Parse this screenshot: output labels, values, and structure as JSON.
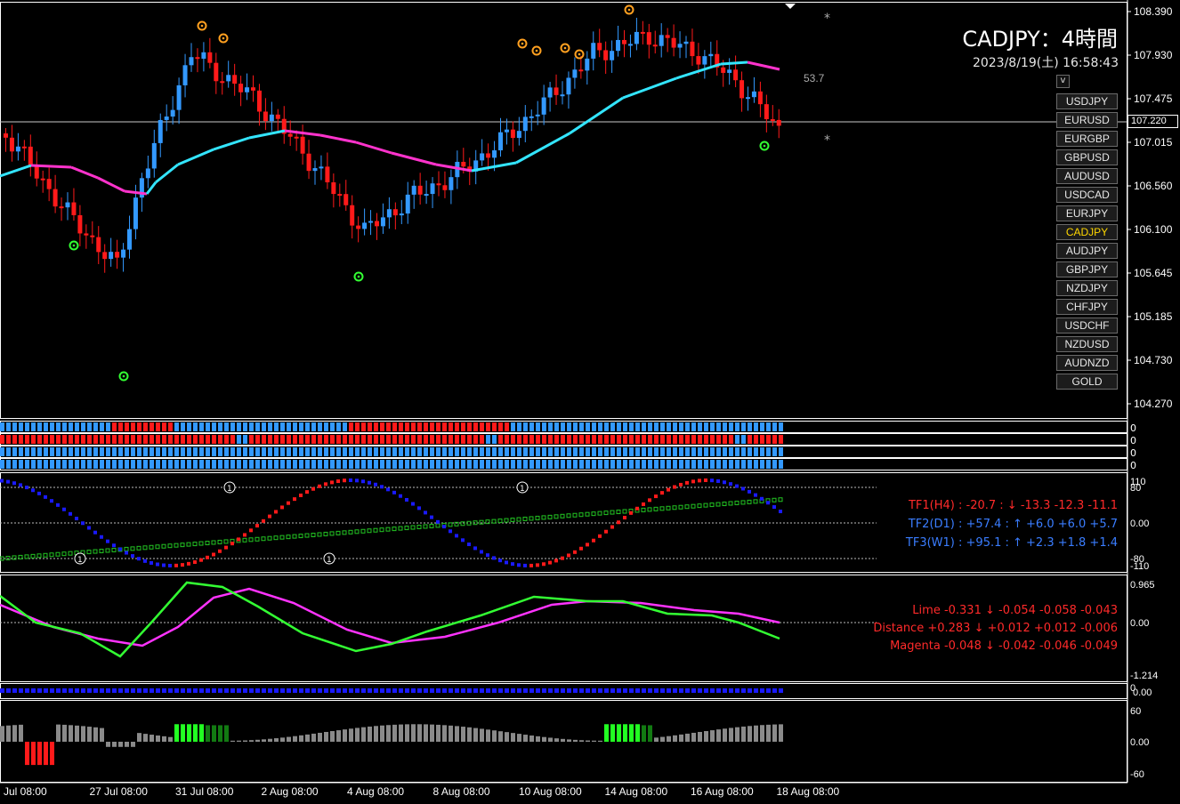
{
  "header": {
    "symbol_title": "CADJPY：4時間",
    "timestamp": "2023/8/19(土) 16:58:43",
    "value_label": "53.7",
    "current_price": "107.220",
    "toggle_label": "v"
  },
  "pairs": [
    "USDJPY",
    "EURUSD",
    "EURGBP",
    "GBPUSD",
    "AUDUSD",
    "USDCAD",
    "EURJPY",
    "CADJPY",
    "AUDJPY",
    "GBPJPY",
    "NZDJPY",
    "CHFJPY",
    "USDCHF",
    "NZDUSD",
    "AUDNZD",
    "GOLD"
  ],
  "active_pair": "CADJPY",
  "price_axis": [
    "108.390",
    "107.930",
    "107.475",
    "107.015",
    "106.560",
    "106.100",
    "105.645",
    "105.185",
    "104.730",
    "104.270"
  ],
  "time_axis": [
    "Jul 08:00",
    "27 Jul 08:00",
    "31 Jul 08:00",
    "2 Aug 08:00",
    "4 Aug 08:00",
    "8 Aug 08:00",
    "10 Aug 08:00",
    "14 Aug 08:00",
    "16 Aug 08:00",
    "18 Aug 08:00"
  ],
  "strip_axis": [
    "0",
    "0",
    "0",
    "0"
  ],
  "tf_panel": {
    "axis": [
      "110",
      "80",
      "0.00",
      "-80",
      "-110"
    ],
    "lines": [
      {
        "text": "TF1(H4) : -20.7 : ↓ -13.3 -12.3 -11.1",
        "color": "#ff2a2a"
      },
      {
        "text": "TF2(D1) : +57.4 : ↑ +6.0 +6.0 +5.7",
        "color": "#3a7dff"
      },
      {
        "text": "TF3(W1) : +95.1 : ↑ +2.3 +1.8 +1.4",
        "color": "#3a7dff"
      }
    ]
  },
  "osc_panel": {
    "axis": [
      "0.965",
      "0.00",
      "-1.214"
    ],
    "lines": [
      {
        "text": "Lime -0.331 ↓ -0.054 -0.058 -0.043",
        "color": "#ff2a2a"
      },
      {
        "text": "Distance +0.283 ↓ +0.012 +0.012 -0.006",
        "color": "#ff2a2a"
      },
      {
        "text": "Magenta -0.048 ↓ -0.042 -0.046 -0.049",
        "color": "#ff2a2a"
      }
    ]
  },
  "dots_panel": {
    "axis": [
      "0",
      "0.00"
    ]
  },
  "hist_panel": {
    "axis": [
      "60",
      "0.00",
      "-60"
    ]
  },
  "colors": {
    "bull": "#3399ff",
    "bear": "#ff1a1a",
    "ma_up": "#33e5ff",
    "ma_down": "#ff33cc",
    "ma_flat": "#808080",
    "lime": "#33ff33",
    "magenta": "#ff33ff"
  }
}
